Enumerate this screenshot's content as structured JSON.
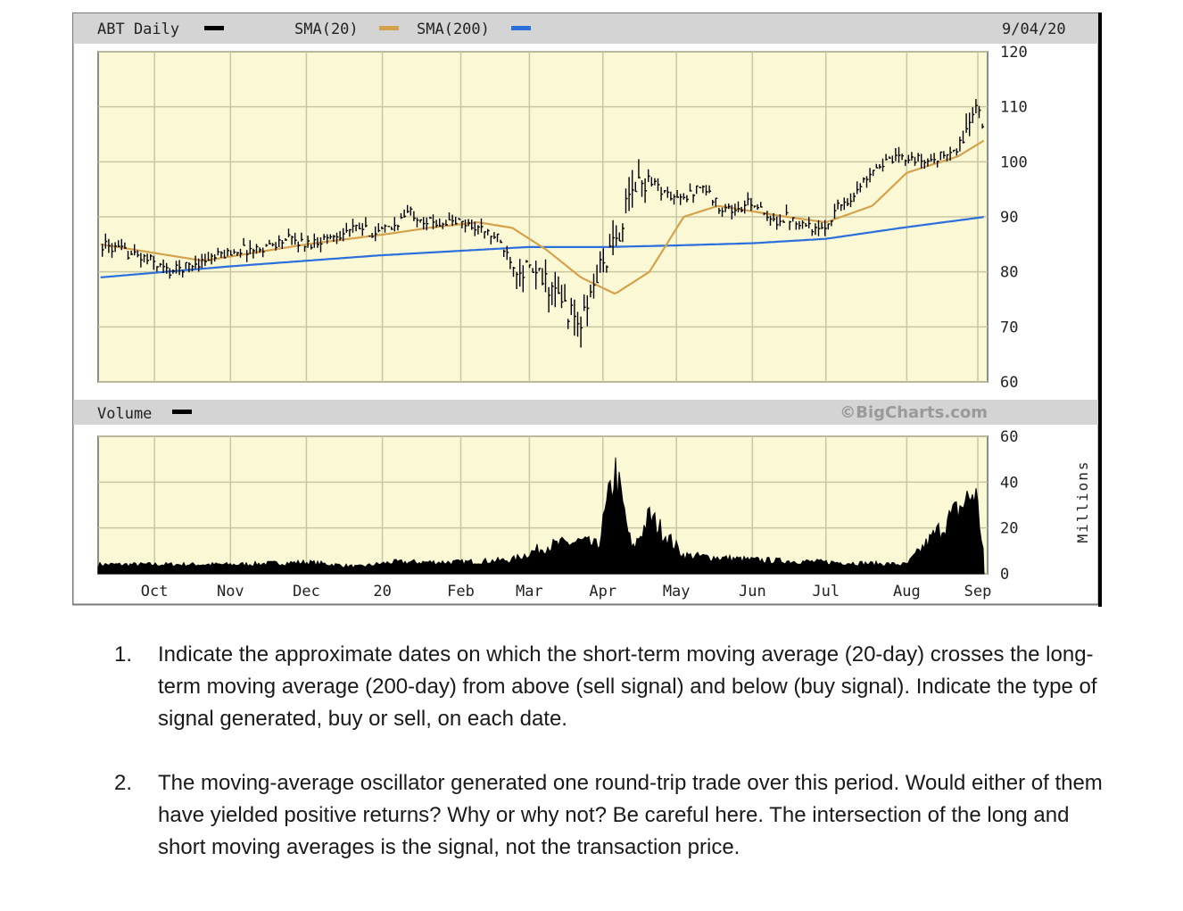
{
  "chart_data": {
    "type": "line",
    "title": "ABT Daily",
    "date_label": "9/04/20",
    "watermark": "©BigCharts.com",
    "legend": [
      {
        "name": "ABT Daily",
        "color": "#000000"
      },
      {
        "name": "SMA(20)",
        "color": "#d4a24c"
      },
      {
        "name": "SMA(200)",
        "color": "#2a6fdb"
      }
    ],
    "price_axis": {
      "ticks": [
        "120",
        "110",
        "100",
        "90",
        "80",
        "70",
        "60"
      ],
      "ylim": [
        60,
        120
      ]
    },
    "volume_axis": {
      "ticks": [
        "60",
        "40",
        "20",
        "0"
      ],
      "ylim": [
        0,
        60
      ],
      "unit_label": "Millions"
    },
    "volume_label": "Volume",
    "x_ticks": [
      "Oct",
      "Nov",
      "Dec",
      "20",
      "Feb",
      "Mar",
      "Apr",
      "May",
      "Jun",
      "Jul",
      "Aug",
      "Sep"
    ],
    "grid": true,
    "series": [
      {
        "name": "ABT Daily",
        "x": [
          "2019-09-09",
          "2019-09-16",
          "2019-09-23",
          "2019-09-30",
          "2019-10-07",
          "2019-10-14",
          "2019-10-21",
          "2019-10-28",
          "2019-11-04",
          "2019-11-11",
          "2019-11-18",
          "2019-11-25",
          "2019-12-02",
          "2019-12-09",
          "2019-12-16",
          "2019-12-23",
          "2019-12-30",
          "2020-01-06",
          "2020-01-13",
          "2020-01-21",
          "2020-01-27",
          "2020-02-03",
          "2020-02-10",
          "2020-02-18",
          "2020-02-24",
          "2020-03-02",
          "2020-03-09",
          "2020-03-16",
          "2020-03-23",
          "2020-03-30",
          "2020-04-06",
          "2020-04-13",
          "2020-04-20",
          "2020-04-27",
          "2020-05-04",
          "2020-05-11",
          "2020-05-18",
          "2020-05-26",
          "2020-06-01",
          "2020-06-08",
          "2020-06-15",
          "2020-06-22",
          "2020-06-29",
          "2020-07-06",
          "2020-07-13",
          "2020-07-20",
          "2020-07-27",
          "2020-08-03",
          "2020-08-10",
          "2020-08-17",
          "2020-08-24",
          "2020-08-31",
          "2020-09-04"
        ],
        "values": [
          85,
          84,
          83,
          82,
          80,
          81,
          82,
          83,
          84,
          84,
          85,
          86,
          85,
          86,
          87,
          88,
          87,
          88,
          91,
          89,
          89,
          89,
          88,
          86,
          82,
          80,
          78,
          74,
          70,
          80,
          85,
          95,
          97,
          94,
          93,
          96,
          92,
          91,
          93,
          89,
          90,
          89,
          87,
          92,
          94,
          99,
          100,
          101,
          100,
          101,
          102,
          110,
          104
        ]
      },
      {
        "name": "SMA(20)",
        "x": [
          "2019-09-09",
          "2019-10-07",
          "2019-10-21",
          "2019-11-04",
          "2019-12-02",
          "2020-01-06",
          "2020-01-21",
          "2020-02-10",
          "2020-02-24",
          "2020-03-09",
          "2020-03-23",
          "2020-04-06",
          "2020-04-20",
          "2020-05-04",
          "2020-05-18",
          "2020-06-01",
          "2020-06-15",
          "2020-07-01",
          "2020-07-20",
          "2020-08-03",
          "2020-08-24",
          "2020-09-04"
        ],
        "values": [
          85,
          83,
          82,
          83,
          85,
          87,
          88,
          89,
          88,
          84,
          79,
          76,
          80,
          90,
          92,
          91,
          90,
          89,
          92,
          98,
          101,
          104
        ]
      },
      {
        "name": "SMA(200)",
        "x": [
          "2019-09-09",
          "2019-11-01",
          "2020-01-01",
          "2020-03-01",
          "2020-04-01",
          "2020-05-01",
          "2020-06-01",
          "2020-07-01",
          "2020-08-01",
          "2020-09-04"
        ],
        "values": [
          79,
          81,
          83,
          84.5,
          84.5,
          84.8,
          85.2,
          86,
          88,
          90
        ]
      }
    ],
    "volume": {
      "x": [
        "2019-09-09",
        "2019-10-07",
        "2019-11-04",
        "2019-12-02",
        "2019-12-23",
        "2020-01-06",
        "2020-02-03",
        "2020-02-24",
        "2020-03-09",
        "2020-03-23",
        "2020-03-30",
        "2020-04-06",
        "2020-04-13",
        "2020-04-20",
        "2020-05-04",
        "2020-06-01",
        "2020-07-01",
        "2020-08-03",
        "2020-08-31",
        "2020-09-04"
      ],
      "values": [
        4,
        4,
        4,
        5,
        3,
        5,
        5,
        6,
        12,
        14,
        12,
        45,
        10,
        25,
        8,
        6,
        5,
        4,
        36,
        4
      ]
    }
  },
  "questions": [
    {
      "number": "1.",
      "text": "Indicate the approximate dates on which the short-term moving average (20-day) crosses the long-term moving average (200-day) from above (sell signal) and below (buy signal).  Indicate the type of signal generated, buy or sell, on each date."
    },
    {
      "number": "2.",
      "text": "The moving-average oscillator generated one round-trip trade over this period.  Would either of them have yielded positive returns?  Why or why not?  Be careful here.  The intersection of the long and short moving averages is the signal, not the transaction price."
    }
  ]
}
